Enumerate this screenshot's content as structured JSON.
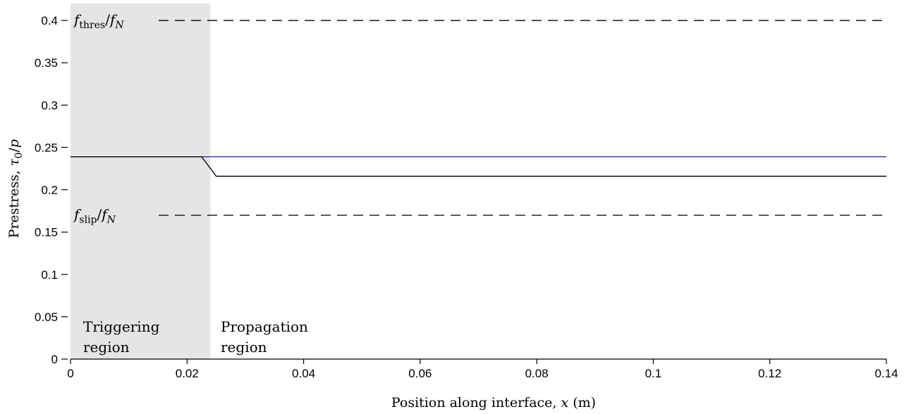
{
  "chart_data": {
    "type": "line",
    "xlabel": "Position along interface, x (m)",
    "ylabel": "Prestress, τ0/p",
    "xlim": [
      0,
      0.14
    ],
    "ylim": [
      0,
      0.42
    ],
    "x_ticks": [
      0,
      0.02,
      0.04,
      0.06,
      0.08,
      0.1,
      0.12,
      0.14
    ],
    "x_tick_labels": [
      "0",
      "0.02",
      "0.04",
      "0.06",
      "0.08",
      "0.1",
      "0.12",
      "0.14"
    ],
    "y_ticks": [
      0,
      0.05,
      0.1,
      0.15,
      0.2,
      0.25,
      0.3,
      0.35,
      0.4
    ],
    "y_tick_labels": [
      "0",
      "0.05",
      "0.1",
      "0.15",
      "0.2",
      "0.25",
      "0.3",
      "0.35",
      "0.4"
    ],
    "grid": false,
    "series": [
      {
        "color": "#1f1fb4",
        "style": "solid",
        "x": [
          0,
          0.14
        ],
        "y": [
          0.239,
          0.239
        ]
      },
      {
        "color": "#000000",
        "style": "solid",
        "x": [
          0,
          0.0225,
          0.025,
          0.14
        ],
        "y": [
          0.239,
          0.239,
          0.216,
          0.216
        ]
      }
    ],
    "reference_lines": [
      {
        "y": 0.4,
        "style": "dashed",
        "color": "#000000",
        "x_start": 0.015,
        "label_main": "f",
        "label_sub": "thres",
        "label_den": "f",
        "label_den_sub": "N"
      },
      {
        "y": 0.17,
        "style": "dashed",
        "color": "#000000",
        "x_start": 0.015,
        "label_main": "f",
        "label_sub": "slip",
        "label_den": "f",
        "label_den_sub": "N"
      }
    ],
    "shaded_region": {
      "x0": 0,
      "x1": 0.024,
      "color": "#e5e5e5"
    },
    "annotations": [
      {
        "line1": "Triggering",
        "line2": "region"
      },
      {
        "line1": "Propagation",
        "line2": "region"
      }
    ]
  }
}
